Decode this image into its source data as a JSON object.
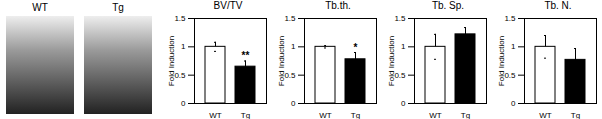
{
  "images": {
    "labels": [
      "WT",
      "Tg"
    ]
  },
  "chart_data": [
    {
      "type": "bar",
      "title": "BV/TV",
      "ylabel": "Fold Induction",
      "categories": [
        "WT",
        "Tg"
      ],
      "values": [
        1,
        0.65
      ],
      "errors": [
        0.08,
        0.1
      ],
      "colors": [
        "#ffffff",
        "#000000"
      ],
      "ylim": [
        0,
        1.5
      ],
      "yticks": [
        0,
        0.5,
        1,
        1.5
      ],
      "annotations": [
        {
          "category": "Tg",
          "text": "**"
        }
      ]
    },
    {
      "type": "bar",
      "title": "Tb.th.",
      "ylabel": "Fold Induction",
      "categories": [
        "WT",
        "Tg"
      ],
      "values": [
        1,
        0.78
      ],
      "errors": [
        0.02,
        0.12
      ],
      "colors": [
        "#ffffff",
        "#000000"
      ],
      "ylim": [
        0,
        1.5
      ],
      "yticks": [
        0,
        0.5,
        1,
        1.5
      ],
      "annotations": [
        {
          "category": "Tg",
          "text": "*"
        }
      ]
    },
    {
      "type": "bar",
      "title": "Tb. Sp.",
      "ylabel": "Fold Induction",
      "categories": [
        "WT",
        "Tg"
      ],
      "values": [
        1,
        1.22
      ],
      "errors": [
        0.22,
        0.12
      ],
      "colors": [
        "#ffffff",
        "#000000"
      ],
      "ylim": [
        0,
        1.5
      ],
      "yticks": [
        0,
        0.5,
        1,
        1.5
      ],
      "annotations": []
    },
    {
      "type": "bar",
      "title": "Tb. N.",
      "ylabel": "Fold Induction",
      "categories": [
        "WT",
        "Tg"
      ],
      "values": [
        1,
        0.77
      ],
      "errors": [
        0.2,
        0.2
      ],
      "colors": [
        "#ffffff",
        "#000000"
      ],
      "ylim": [
        0,
        1.5
      ],
      "yticks": [
        0,
        0.5,
        1,
        1.5
      ],
      "annotations": []
    }
  ]
}
